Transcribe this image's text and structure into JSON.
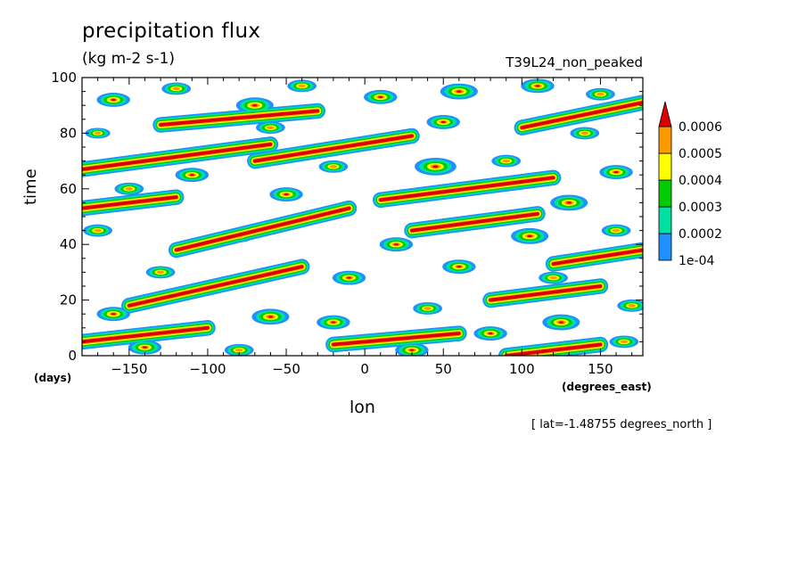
{
  "chart_data": {
    "type": "heatmap",
    "title": "precipitation flux",
    "units": "(kg m-2 s-1)",
    "run_name": "T39L24_non_peaked",
    "xlabel": "lon",
    "x_unit": "(degrees_east)",
    "ylabel": "time",
    "y_unit": "(days)",
    "annotation": "[ lat=-1.48755 degrees_north ]",
    "xlim": [
      -180,
      177
    ],
    "ylim": [
      0,
      100
    ],
    "x_ticks": [
      -150,
      -100,
      -50,
      0,
      50,
      100,
      150
    ],
    "y_ticks": [
      0,
      20,
      40,
      60,
      80,
      100
    ],
    "colorbar": {
      "levels": [
        "1e-04",
        "0.0002",
        "0.0003",
        "0.0004",
        "0.0005",
        "0.0006"
      ],
      "colors": [
        "#1e90ff",
        "#00e0a0",
        "#00cc00",
        "#ffff00",
        "#ff9900",
        "#dd0000"
      ],
      "extend": "max"
    },
    "streaks": [
      {
        "lon0": -180,
        "t0": 67,
        "lon1": -60,
        "t1": 76
      },
      {
        "lon0": -70,
        "t0": 70,
        "lon1": 30,
        "t1": 79
      },
      {
        "lon0": -130,
        "t0": 83,
        "lon1": -30,
        "t1": 88
      },
      {
        "lon0": 100,
        "t0": 82,
        "lon1": 177,
        "t1": 91
      },
      {
        "lon0": -180,
        "t0": 53,
        "lon1": -120,
        "t1": 57
      },
      {
        "lon0": -120,
        "t0": 38,
        "lon1": -10,
        "t1": 53
      },
      {
        "lon0": 10,
        "t0": 56,
        "lon1": 120,
        "t1": 64
      },
      {
        "lon0": 30,
        "t0": 45,
        "lon1": 110,
        "t1": 51
      },
      {
        "lon0": -150,
        "t0": 18,
        "lon1": -40,
        "t1": 32
      },
      {
        "lon0": 120,
        "t0": 33,
        "lon1": 177,
        "t1": 38
      },
      {
        "lon0": 80,
        "t0": 20,
        "lon1": 150,
        "t1": 25
      },
      {
        "lon0": -180,
        "t0": 5,
        "lon1": -100,
        "t1": 10
      },
      {
        "lon0": -20,
        "t0": 4,
        "lon1": 60,
        "t1": 8
      },
      {
        "lon0": 90,
        "t0": 0,
        "lon1": 150,
        "t1": 4
      }
    ],
    "blobs": [
      {
        "lon": -160,
        "t": 92,
        "amp": 0.8
      },
      {
        "lon": -120,
        "t": 96,
        "amp": 0.7
      },
      {
        "lon": -70,
        "t": 90,
        "amp": 0.9
      },
      {
        "lon": -40,
        "t": 97,
        "amp": 0.7
      },
      {
        "lon": 10,
        "t": 93,
        "amp": 0.8
      },
      {
        "lon": 60,
        "t": 95,
        "amp": 0.9
      },
      {
        "lon": 110,
        "t": 97,
        "amp": 0.8
      },
      {
        "lon": 150,
        "t": 94,
        "amp": 0.7
      },
      {
        "lon": -170,
        "t": 80,
        "amp": 0.6
      },
      {
        "lon": -60,
        "t": 82,
        "amp": 0.7
      },
      {
        "lon": 50,
        "t": 84,
        "amp": 0.8
      },
      {
        "lon": 140,
        "t": 80,
        "amp": 0.7
      },
      {
        "lon": -110,
        "t": 65,
        "amp": 0.8
      },
      {
        "lon": -20,
        "t": 68,
        "amp": 0.7
      },
      {
        "lon": 45,
        "t": 68,
        "amp": 1.0
      },
      {
        "lon": 90,
        "t": 70,
        "amp": 0.7
      },
      {
        "lon": 160,
        "t": 66,
        "amp": 0.8
      },
      {
        "lon": -150,
        "t": 60,
        "amp": 0.7
      },
      {
        "lon": -50,
        "t": 58,
        "amp": 0.8
      },
      {
        "lon": 130,
        "t": 55,
        "amp": 0.9
      },
      {
        "lon": -170,
        "t": 45,
        "amp": 0.7
      },
      {
        "lon": -80,
        "t": 43,
        "amp": 0.7
      },
      {
        "lon": 20,
        "t": 40,
        "amp": 0.8
      },
      {
        "lon": 105,
        "t": 43,
        "amp": 0.9
      },
      {
        "lon": 160,
        "t": 45,
        "amp": 0.7
      },
      {
        "lon": -130,
        "t": 30,
        "amp": 0.7
      },
      {
        "lon": -10,
        "t": 28,
        "amp": 0.8
      },
      {
        "lon": 60,
        "t": 32,
        "amp": 0.8
      },
      {
        "lon": 120,
        "t": 28,
        "amp": 0.7
      },
      {
        "lon": -160,
        "t": 15,
        "amp": 0.8
      },
      {
        "lon": -60,
        "t": 14,
        "amp": 0.9
      },
      {
        "lon": -20,
        "t": 12,
        "amp": 0.8
      },
      {
        "lon": 40,
        "t": 17,
        "amp": 0.7
      },
      {
        "lon": 125,
        "t": 12,
        "amp": 0.9
      },
      {
        "lon": 170,
        "t": 18,
        "amp": 0.7
      },
      {
        "lon": -140,
        "t": 3,
        "amp": 0.8
      },
      {
        "lon": -80,
        "t": 2,
        "amp": 0.7
      },
      {
        "lon": 30,
        "t": 2,
        "amp": 0.8
      },
      {
        "lon": 165,
        "t": 5,
        "amp": 0.7
      },
      {
        "lon": 80,
        "t": 8,
        "amp": 0.8
      }
    ]
  }
}
